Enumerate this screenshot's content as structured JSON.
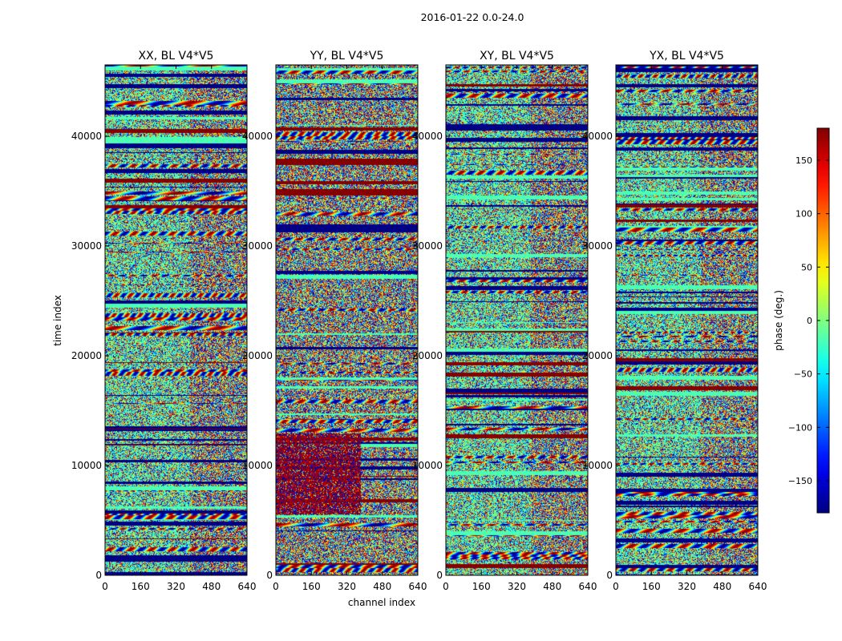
{
  "suptitle": "2016-01-22 0.0-24.0",
  "chart_data": {
    "type": "heatmap",
    "panels": [
      {
        "title": "XX, BL V4*V5",
        "seed": 11,
        "left_offset": 0.0,
        "red_block": false
      },
      {
        "title": "YY, BL V4*V5",
        "seed": 23,
        "left_offset": -0.35,
        "red_block": true
      },
      {
        "title": "XY, BL V4*V5",
        "seed": 37,
        "left_offset": 0.0,
        "red_block": false
      },
      {
        "title": "YX, BL V4*V5",
        "seed": 53,
        "left_offset": 0.0,
        "red_block": false
      }
    ],
    "xlabel": "channel index",
    "ylabel": "time index",
    "xlim": [
      0,
      640
    ],
    "ylim": [
      0,
      46500
    ],
    "xticks": [
      0,
      160,
      320,
      480,
      640
    ],
    "yticks": [
      0,
      10000,
      20000,
      30000,
      40000
    ],
    "colorbar": {
      "label": "phase (deg.)",
      "vmin": -180,
      "vmax": 180,
      "ticks": [
        -150,
        -100,
        -50,
        0,
        50,
        100,
        150
      ],
      "tick_labels": [
        "−150",
        "−100",
        "−50",
        "0",
        "50",
        "100",
        "150"
      ],
      "colormap": "jet"
    }
  }
}
